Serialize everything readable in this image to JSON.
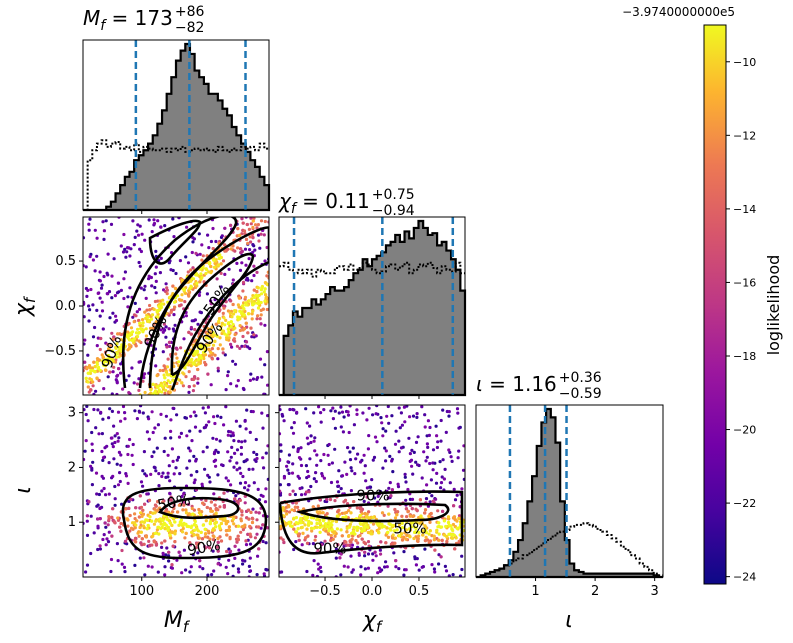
{
  "chart_data": {
    "type": "corner",
    "colorbar": {
      "label": "loglikelihood",
      "offset_text": "−3.9740000000e5",
      "range": [
        -24.2,
        -9.0
      ],
      "ticks": [
        -10,
        -12,
        -14,
        -16,
        -18,
        -20,
        -22,
        -24
      ],
      "tick_labels": [
        "−10",
        "−12",
        "−14",
        "−16",
        "−18",
        "−20",
        "−22",
        "−24"
      ],
      "colormap": "plasma"
    },
    "parameters": [
      {
        "key": "Mf",
        "axis_label": "M",
        "axis_sub": "f",
        "range": [
          10,
          295
        ],
        "ticks": [
          100,
          200
        ],
        "tick_labels": [
          "100",
          "200"
        ],
        "median": 173,
        "upper_err": "+86",
        "lower_err": "−82",
        "title_value": "173",
        "quantile_lines": [
          91,
          173,
          259
        ],
        "posterior_hist": [
          0,
          0,
          0,
          0,
          0,
          0.02,
          0.05,
          0.1,
          0.15,
          0.2,
          0.23,
          0.3,
          0.33,
          0.36,
          0.4,
          0.45,
          0.52,
          0.6,
          0.7,
          0.8,
          0.9,
          0.96,
          1.0,
          0.94,
          0.84,
          0.8,
          0.76,
          0.7,
          0.7,
          0.66,
          0.61,
          0.57,
          0.5,
          0.45,
          0.4,
          0.35,
          0.3,
          0.26,
          0.2,
          0.15
        ],
        "prior_hist": [
          0,
          0.3,
          0.36,
          0.4,
          0.42,
          0.38,
          0.4,
          0.41,
          0.37,
          0.38,
          0.36,
          0.4,
          0.35,
          0.38,
          0.37,
          0.36,
          0.36,
          0.37,
          0.35,
          0.37,
          0.36,
          0.38,
          0.35,
          0.36,
          0.37,
          0.36,
          0.37,
          0.36,
          0.35,
          0.38,
          0.36,
          0.35,
          0.37,
          0.36,
          0.38,
          0.37,
          0.38,
          0.36,
          0.4,
          0.37
        ]
      },
      {
        "key": "chif",
        "axis_label": "χ",
        "axis_sub": "f",
        "range": [
          -0.99,
          0.99
        ],
        "ticks": [
          -0.5,
          0.0,
          0.5
        ],
        "tick_labels": [
          "−0.5",
          "0.0",
          "0.5"
        ],
        "median": 0.11,
        "upper_err": "+0.75",
        "lower_err": "−0.94",
        "title_value": "0.11",
        "quantile_lines": [
          -0.83,
          0.11,
          0.86
        ],
        "posterior_hist": [
          0,
          0.34,
          0.4,
          0.48,
          0.45,
          0.5,
          0.5,
          0.55,
          0.52,
          0.55,
          0.58,
          0.62,
          0.6,
          0.6,
          0.62,
          0.66,
          0.7,
          0.72,
          0.78,
          0.74,
          0.78,
          0.8,
          0.82,
          0.86,
          0.88,
          0.92,
          0.88,
          0.94,
          0.9,
          0.96,
          1.0,
          0.96,
          0.92,
          0.93,
          0.86,
          0.88,
          0.83,
          0.78,
          0.72,
          0.6
        ],
        "prior_hist": [
          0.74,
          0.76,
          0.72,
          0.7,
          0.72,
          0.7,
          0.72,
          0.68,
          0.72,
          0.71,
          0.7,
          0.7,
          0.73,
          0.74,
          0.72,
          0.75,
          0.72,
          0.73,
          0.76,
          0.75,
          0.72,
          0.7,
          0.71,
          0.74,
          0.75,
          0.72,
          0.74,
          0.76,
          0.7,
          0.72,
          0.75,
          0.74,
          0.76,
          0.73,
          0.7,
          0.74,
          0.72,
          0.71,
          0.76,
          0.7
        ]
      },
      {
        "key": "iota",
        "axis_label": "ι",
        "axis_sub": "",
        "range": [
          0.0,
          3.14
        ],
        "ticks": [
          1,
          2,
          3
        ],
        "tick_labels": [
          "1",
          "2",
          "3"
        ],
        "median": 1.16,
        "upper_err": "+0.36",
        "lower_err": "−0.59",
        "title_value": "1.16",
        "quantile_lines": [
          0.57,
          1.16,
          1.52
        ],
        "posterior_hist": [
          0.0,
          0.01,
          0.02,
          0.03,
          0.04,
          0.05,
          0.07,
          0.1,
          0.15,
          0.22,
          0.32,
          0.45,
          0.6,
          0.78,
          0.92,
          1.0,
          0.95,
          0.8,
          0.45,
          0.22,
          0.08,
          0.04,
          0.03,
          0.02,
          0.02,
          0.02,
          0.02,
          0.02,
          0.02,
          0.02,
          0.02,
          0.02,
          0.02,
          0.02,
          0.02,
          0.02,
          0.02,
          0.02,
          0.01,
          0.0
        ],
        "prior_hist": [
          0.0,
          0.01,
          0.02,
          0.03,
          0.04,
          0.05,
          0.07,
          0.08,
          0.1,
          0.11,
          0.13,
          0.14,
          0.16,
          0.18,
          0.2,
          0.22,
          0.24,
          0.26,
          0.27,
          0.28,
          0.3,
          0.31,
          0.31,
          0.32,
          0.31,
          0.3,
          0.28,
          0.27,
          0.25,
          0.23,
          0.21,
          0.18,
          0.16,
          0.13,
          0.11,
          0.08,
          0.06,
          0.04,
          0.02,
          0.01
        ]
      }
    ],
    "contour_labels": [
      "50%",
      "90%"
    ]
  }
}
